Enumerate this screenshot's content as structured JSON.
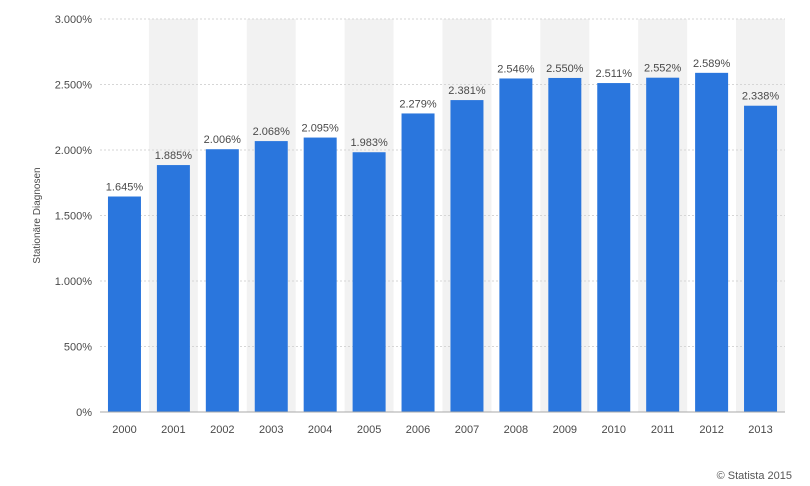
{
  "chart_data": {
    "type": "bar",
    "categories": [
      "2000",
      "2001",
      "2002",
      "2003",
      "2004",
      "2005",
      "2006",
      "2007",
      "2008",
      "2009",
      "2010",
      "2011",
      "2012",
      "2013"
    ],
    "values": [
      1645,
      1885,
      2006,
      2068,
      2095,
      1983,
      2279,
      2381,
      2546,
      2550,
      2511,
      2552,
      2589,
      2338
    ],
    "value_labels": [
      "1.645%",
      "1.885%",
      "2.006%",
      "2.068%",
      "2.095%",
      "1.983%",
      "2.279%",
      "2.381%",
      "2.546%",
      "2.550%",
      "2.511%",
      "2.552%",
      "2.589%",
      "2.338%"
    ],
    "ylabel": "Stationäre Diagnosen",
    "ylim": [
      0,
      3000
    ],
    "yticks": [
      0,
      500,
      1000,
      1500,
      2000,
      2500,
      3000
    ],
    "ytick_labels": [
      "0%",
      "500%",
      "1.000%",
      "1.500%",
      "2.000%",
      "2.500%",
      "3.000%"
    ],
    "grid": true,
    "bar_color": "#2a76dd",
    "band_color": "#f2f2f2"
  },
  "credit": "© Statista 2015"
}
